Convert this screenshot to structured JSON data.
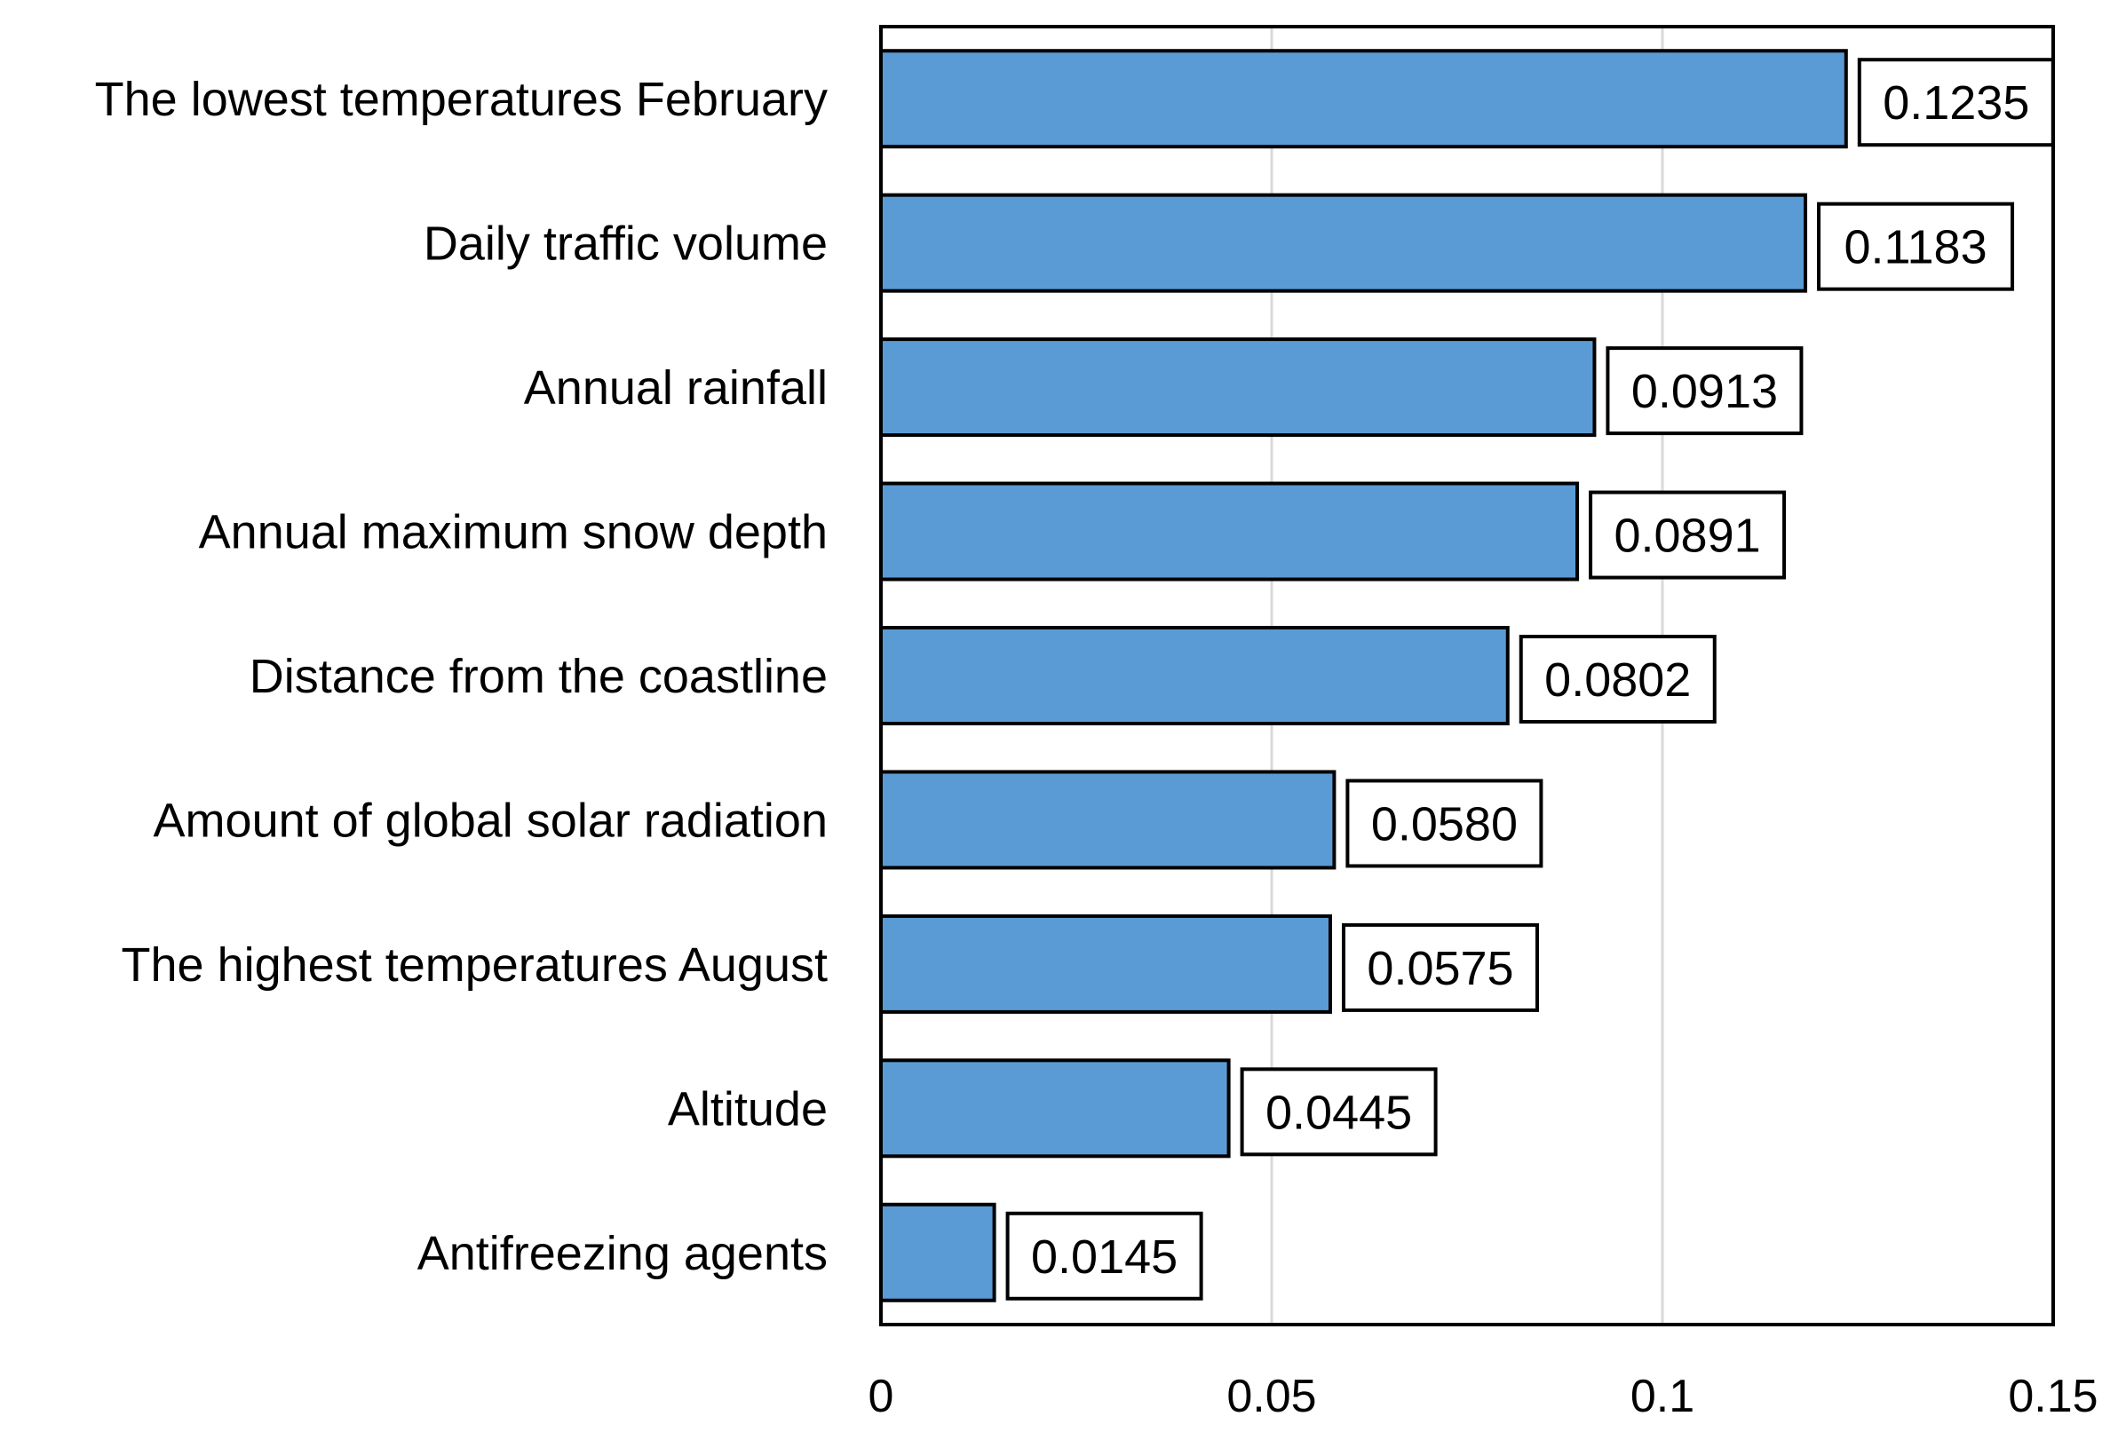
{
  "chart_data": {
    "type": "bar",
    "orientation": "horizontal",
    "title": "",
    "xlabel": "",
    "ylabel": "",
    "categories": [
      "The lowest temperatures February",
      "Daily traffic volume",
      "Annual rainfall",
      "Annual maximum snow depth",
      "Distance from the coastline",
      "Amount of global solar radiation",
      "The highest temperatures August",
      "Altitude",
      "Antifreezing agents"
    ],
    "values": [
      0.1235,
      0.1183,
      0.0913,
      0.0891,
      0.0802,
      0.058,
      0.0575,
      0.0445,
      0.0145
    ],
    "value_labels": [
      "0.1235",
      "0.1183",
      "0.0913",
      "0.0891",
      "0.0802",
      "0.0580",
      "0.0575",
      "0.0445",
      "0.0145"
    ],
    "xlim": [
      0,
      0.15
    ],
    "x_ticks": [
      0,
      0.05,
      0.1,
      0.15
    ],
    "x_tick_labels": [
      "0",
      "0.05",
      "0.1",
      "0.15"
    ],
    "grid": "vertical",
    "legend": "none",
    "colors": {
      "bar_fill": "#5B9BD5",
      "bar_stroke": "#000000",
      "grid": "#D9D9D9",
      "axis": "#000000"
    }
  }
}
